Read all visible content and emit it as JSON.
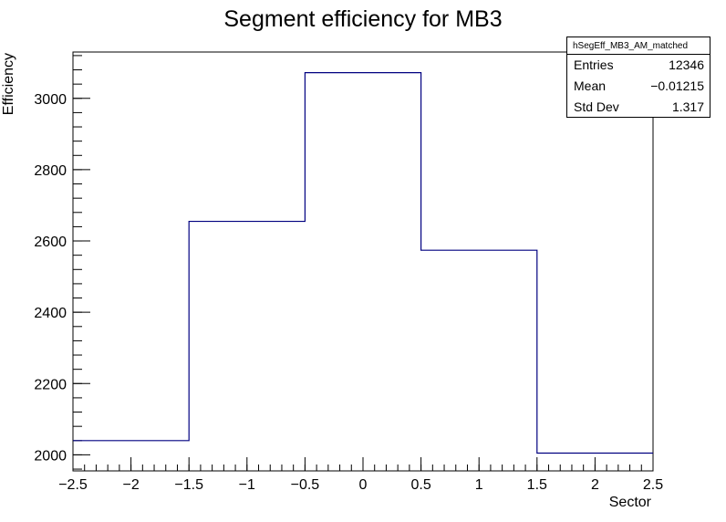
{
  "chart_data": {
    "type": "bar",
    "histogram": true,
    "title": "Segment efficiency for MB3",
    "xlabel": "Sector",
    "ylabel": "Efficiency",
    "bin_edges": [
      -2.5,
      -1.5,
      -0.5,
      0.5,
      1.5,
      2.5
    ],
    "values": [
      2040,
      2655,
      3072,
      2574,
      2005
    ],
    "xlim": [
      -2.5,
      2.5
    ],
    "ylim": [
      1955,
      3130
    ],
    "xticks": [
      -2.5,
      -2,
      -1.5,
      -1,
      -0.5,
      0,
      0.5,
      1,
      1.5,
      2,
      2.5
    ],
    "xtick_labels": [
      "−2.5",
      "−2",
      "−1.5",
      "−1",
      "−0.5",
      "0",
      "0.5",
      "1",
      "1.5",
      "2",
      "2.5"
    ],
    "yticks": [
      2000,
      2200,
      2400,
      2600,
      2800,
      3000
    ],
    "ytick_labels": [
      "2000",
      "2200",
      "2400",
      "2600",
      "2800",
      "3000"
    ],
    "line_color": "#000080",
    "grid": false,
    "stats_box": {
      "name": "hSegEff_MB3_AM_matched",
      "entries_label": "Entries",
      "entries": "12346",
      "mean_label": "Mean",
      "mean": "−0.01215",
      "stddev_label": "Std Dev",
      "stddev": "1.317"
    }
  }
}
